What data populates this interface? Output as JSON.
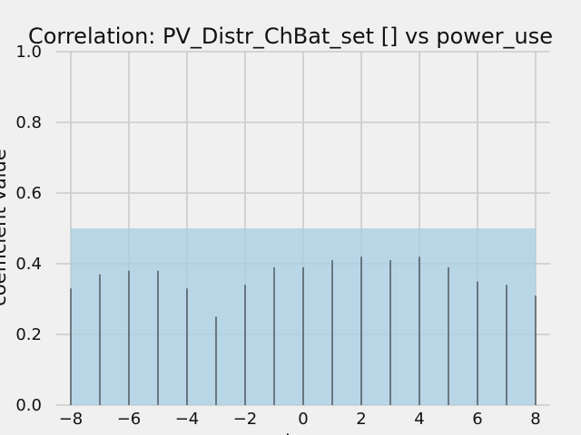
{
  "chart_data": {
    "type": "bar",
    "title": "Correlation: PV_Distr_ChBat_set [] vs power_use",
    "xlabel": "lag",
    "ylabel": "coefficient value",
    "xlim": [
      -8.5,
      8.5
    ],
    "ylim": [
      0,
      1
    ],
    "x_ticks": [
      -8,
      -6,
      -4,
      -2,
      0,
      2,
      4,
      6,
      8
    ],
    "x_tick_labels": [
      "−8",
      "−6",
      "−4",
      "−2",
      "0",
      "2",
      "4",
      "6",
      "8"
    ],
    "y_ticks": [
      0,
      0.2,
      0.4,
      0.6,
      0.8,
      1.0
    ],
    "y_tick_labels": [
      "0.0",
      "0.2",
      "0.4",
      "0.6",
      "0.8",
      "1.0"
    ],
    "x": [
      -8,
      -7,
      -6,
      -5,
      -4,
      -3,
      -2,
      -1,
      0,
      1,
      2,
      3,
      4,
      5,
      6,
      7,
      8
    ],
    "values": [
      0.33,
      0.37,
      0.38,
      0.38,
      0.33,
      0.25,
      0.34,
      0.39,
      0.39,
      0.41,
      0.42,
      0.41,
      0.42,
      0.39,
      0.35,
      0.34,
      0.31
    ],
    "confidence_band": {
      "x_range": [
        -8,
        8
      ],
      "y_range": [
        0,
        0.5
      ]
    },
    "grid": true,
    "colors": {
      "background": "#f0f0f0",
      "grid": "#cbcbcb",
      "bar": "#1a1a1a",
      "band": "#a6cee3",
      "text": "#111111"
    }
  }
}
